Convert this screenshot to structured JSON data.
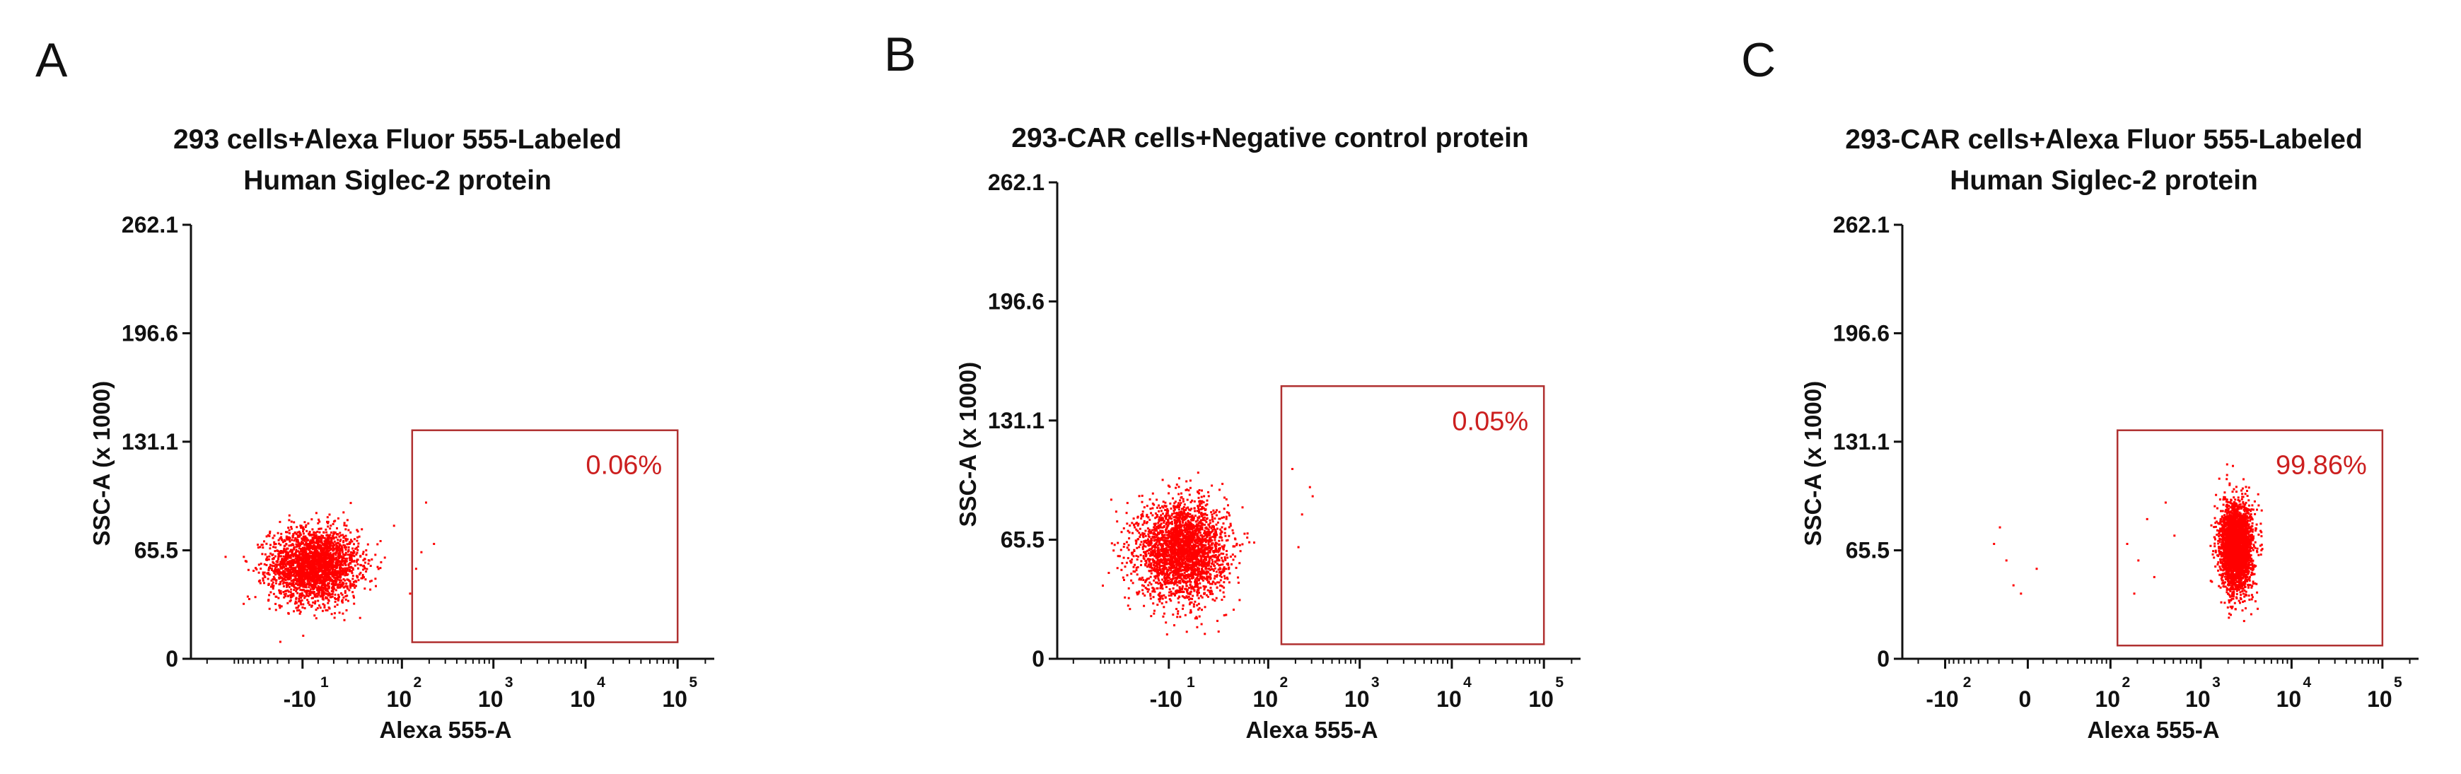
{
  "colors": {
    "events": "#ff0000",
    "gate": "#b03030",
    "gate_label": "#cc1f1f",
    "axis": "#111111"
  },
  "chart_data": [
    {
      "type": "scatter",
      "panel": "A",
      "title": [
        "293 cells+Alexa Fluor 555-Labeled",
        "Human Siglec-2 protein"
      ],
      "xlabel": "Alexa 555-A",
      "ylabel": "SSC-A (x 1000)",
      "x_scale": "biexponential",
      "x_ticks": [
        {
          "base": "-10",
          "exp": "1",
          "value": -10
        },
        {
          "base": "10",
          "exp": "2",
          "value": 100
        },
        {
          "base": "10",
          "exp": "3",
          "value": 1000
        },
        {
          "base": "10",
          "exp": "4",
          "value": 10000
        },
        {
          "base": "10",
          "exp": "5",
          "value": 100000
        }
      ],
      "y_ticks": [
        "0",
        "65.5",
        "131.1",
        "196.6",
        "262.1"
      ],
      "ylim": [
        0,
        262.1
      ],
      "gate": {
        "label": "0.06%",
        "x_range": [
          130,
          100000
        ],
        "y_range": [
          10,
          138
        ]
      },
      "population": {
        "x_center": -3,
        "x_spread": 0.55,
        "y_center": 57,
        "y_spread": 11,
        "count": 2600
      },
      "outliers": [
        [
          160,
          65
        ],
        [
          220,
          70
        ],
        [
          140,
          55
        ],
        [
          180,
          95
        ],
        [
          120,
          40
        ]
      ]
    },
    {
      "type": "scatter",
      "panel": "B",
      "title": [
        "293-CAR cells+Negative control protein"
      ],
      "xlabel": "Alexa 555-A",
      "ylabel": "SSC-A (x 1000)",
      "x_scale": "biexponential",
      "x_ticks": [
        {
          "base": "-10",
          "exp": "1",
          "value": -10
        },
        {
          "base": "10",
          "exp": "2",
          "value": 100
        },
        {
          "base": "10",
          "exp": "3",
          "value": 1000
        },
        {
          "base": "10",
          "exp": "4",
          "value": 10000
        },
        {
          "base": "10",
          "exp": "5",
          "value": 100000
        }
      ],
      "y_ticks": [
        "0",
        "65.5",
        "131.1",
        "196.6",
        "262.1"
      ],
      "ylim": [
        0,
        262.1
      ],
      "gate": {
        "label": "0.05%",
        "x_range": [
          140,
          100000
        ],
        "y_range": [
          8,
          150
        ]
      },
      "population": {
        "x_center": -2,
        "x_spread": 0.55,
        "y_center": 60,
        "y_spread": 13,
        "count": 2800
      },
      "outliers": [
        [
          180,
          105
        ],
        [
          280,
          95
        ],
        [
          300,
          90
        ],
        [
          230,
          80
        ],
        [
          210,
          62
        ]
      ]
    },
    {
      "type": "scatter",
      "panel": "C",
      "title": [
        "293-CAR cells+Alexa Fluor 555-Labeled",
        "Human Siglec-2 protein"
      ],
      "xlabel": "Alexa 555-A",
      "ylabel": "SSC-A (x 1000)",
      "x_scale": "biexponential",
      "x_ticks": [
        {
          "base": "-10",
          "exp": "2",
          "value": -100
        },
        {
          "base": "0",
          "exp": "",
          "value": 0
        },
        {
          "base": "10",
          "exp": "2",
          "value": 100
        },
        {
          "base": "10",
          "exp": "3",
          "value": 1000
        },
        {
          "base": "10",
          "exp": "4",
          "value": 10000
        },
        {
          "base": "10",
          "exp": "5",
          "value": 100000
        }
      ],
      "y_ticks": [
        "0",
        "65.5",
        "131.1",
        "196.6",
        "262.1"
      ],
      "ylim": [
        0,
        262.1
      ],
      "gate": {
        "label": "99.86%",
        "x_range": [
          120,
          100000
        ],
        "y_range": [
          8,
          138
        ]
      },
      "population": {
        "x_center": 2400,
        "x_spread": 0.2,
        "y_center": 68,
        "y_spread": 13,
        "count": 3000
      },
      "outliers": [
        [
          -20,
          80
        ],
        [
          -15,
          60
        ],
        [
          -10,
          45
        ],
        [
          -25,
          70
        ],
        [
          -5,
          40
        ],
        [
          5,
          55
        ],
        [
          150,
          70
        ],
        [
          200,
          60
        ],
        [
          250,
          85
        ],
        [
          300,
          50
        ],
        [
          400,
          95
        ],
        [
          180,
          40
        ],
        [
          500,
          75
        ]
      ]
    }
  ]
}
